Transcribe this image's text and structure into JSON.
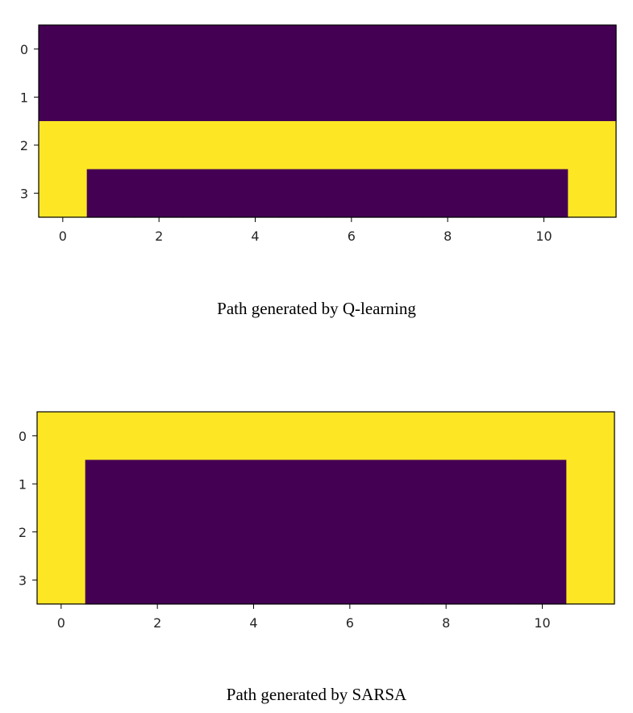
{
  "chart_data": [
    {
      "type": "heatmap",
      "caption": "Path generated by Q-learning",
      "rows": 4,
      "cols": 12,
      "xticks": [
        0,
        2,
        4,
        6,
        8,
        10
      ],
      "yticks": [
        0,
        1,
        2,
        3
      ],
      "colormap": {
        "0": "#440154",
        "1": "#fde725"
      },
      "grid": false,
      "values": [
        [
          0,
          0,
          0,
          0,
          0,
          0,
          0,
          0,
          0,
          0,
          0,
          0
        ],
        [
          0,
          0,
          0,
          0,
          0,
          0,
          0,
          0,
          0,
          0,
          0,
          0
        ],
        [
          1,
          1,
          1,
          1,
          1,
          1,
          1,
          1,
          1,
          1,
          1,
          1
        ],
        [
          1,
          0,
          0,
          0,
          0,
          0,
          0,
          0,
          0,
          0,
          0,
          1
        ]
      ]
    },
    {
      "type": "heatmap",
      "caption": "Path generated by SARSA",
      "rows": 4,
      "cols": 12,
      "xticks": [
        0,
        2,
        4,
        6,
        8,
        10
      ],
      "yticks": [
        0,
        1,
        2,
        3
      ],
      "colormap": {
        "0": "#440154",
        "1": "#fde725"
      },
      "grid": false,
      "values": [
        [
          1,
          1,
          1,
          1,
          1,
          1,
          1,
          1,
          1,
          1,
          1,
          1
        ],
        [
          1,
          0,
          0,
          0,
          0,
          0,
          0,
          0,
          0,
          0,
          0,
          1
        ],
        [
          1,
          0,
          0,
          0,
          0,
          0,
          0,
          0,
          0,
          0,
          0,
          1
        ],
        [
          1,
          0,
          0,
          0,
          0,
          0,
          0,
          0,
          0,
          0,
          0,
          1
        ]
      ]
    }
  ]
}
